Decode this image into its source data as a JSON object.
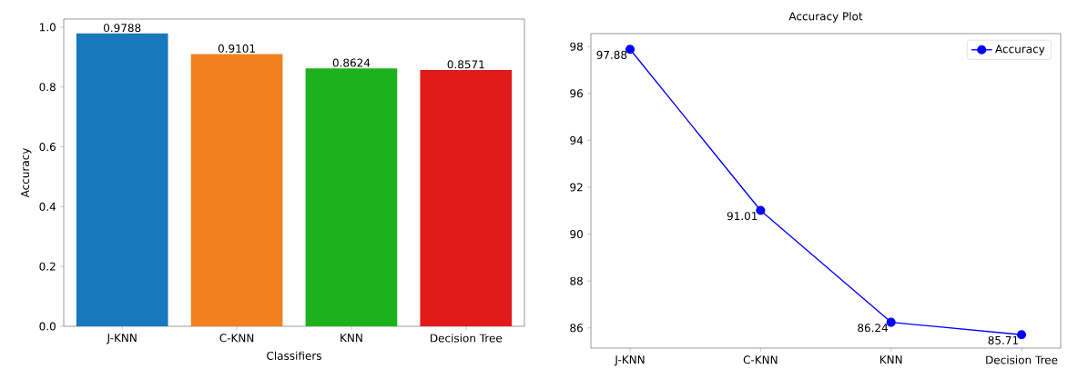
{
  "chart_data": [
    {
      "type": "bar",
      "categories": [
        "J-KNN",
        "C-KNN",
        "KNN",
        "Decision Tree"
      ],
      "values": [
        0.9788,
        0.9101,
        0.8624,
        0.8571
      ],
      "colors": [
        "#1878be",
        "#f2811d",
        "#1db21d",
        "#e11a1a"
      ],
      "xlabel": "Classifiers",
      "ylabel": "Accuracy",
      "ylim": [
        0,
        1.027
      ],
      "yticks": [
        {
          "value": 0,
          "label": "0.0"
        },
        {
          "value": 0.2,
          "label": "0.2"
        },
        {
          "value": 0.4,
          "label": "0.4"
        },
        {
          "value": 0.6,
          "label": "0.6"
        },
        {
          "value": 0.8,
          "label": "0.8"
        },
        {
          "value": 1,
          "label": "1.0"
        }
      ],
      "data_labels": true
    },
    {
      "type": "line",
      "title": "Accuracy Plot",
      "categories": [
        "J-KNN",
        "C-KNN",
        "KNN",
        "Decision Tree"
      ],
      "series": [
        {
          "name": "Accuracy",
          "color": "#0000ff",
          "values": [
            97.88,
            91.01,
            86.24,
            85.71
          ]
        }
      ],
      "ylim": [
        85.14,
        98.55
      ],
      "yticks": [
        86,
        88,
        90,
        92,
        94,
        96,
        98
      ],
      "marker": "circle",
      "legend": "top right",
      "data_labels": true
    }
  ]
}
